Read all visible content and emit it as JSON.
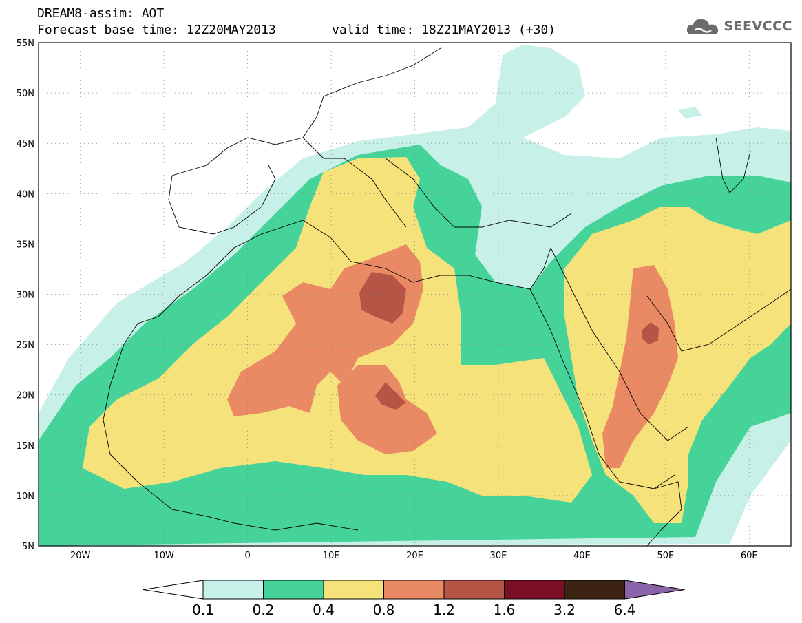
{
  "header": {
    "line1": "DREAM8-assim: AOT",
    "line2": "Forecast base time: 12Z20MAY2013",
    "line2b": "valid time: 18Z21MAY2013 (+30)"
  },
  "logo": {
    "text": "SEEVCCC",
    "icon": "cloud-logo-icon"
  },
  "map": {
    "lon_range": [
      -25,
      65
    ],
    "lat_range": [
      5,
      55
    ],
    "lat_ticks": [
      "5N",
      "10N",
      "15N",
      "20N",
      "25N",
      "30N",
      "35N",
      "40N",
      "45N",
      "50N",
      "55N"
    ],
    "lon_ticks": [
      "20W",
      "10W",
      "0",
      "10E",
      "20E",
      "30E",
      "40E",
      "50E",
      "60E"
    ],
    "grid": "dotted",
    "field": "Aerosol Optical Thickness (AOT)"
  },
  "colorbar": {
    "colors": [
      "#ffffff",
      "#c6f0e8",
      "#46d39a",
      "#f6e27a",
      "#ea8a64",
      "#b55546",
      "#7a0f26",
      "#3d2412",
      "#8a63a8"
    ],
    "labels": [
      "0.1",
      "0.2",
      "0.4",
      "0.8",
      "1.2",
      "1.6",
      "3.2",
      "6.4"
    ]
  },
  "levels": {
    "c1": "#c6f0e8",
    "c2": "#46d39a",
    "c3": "#f6e27a",
    "c4": "#ea8a64",
    "c5": "#b55546"
  }
}
